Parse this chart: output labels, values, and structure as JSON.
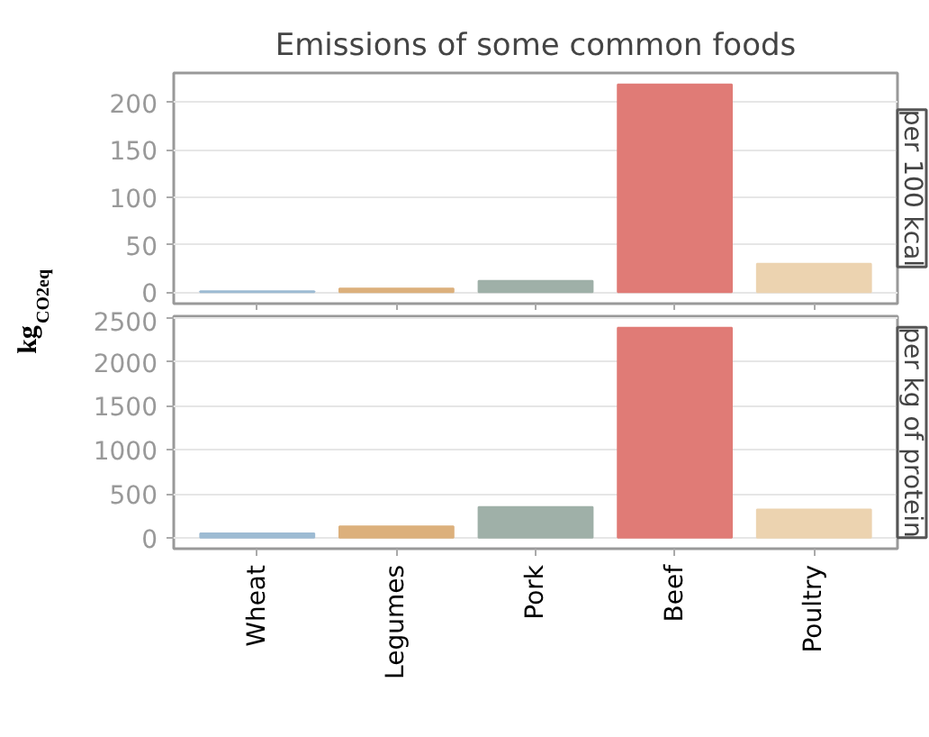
{
  "chart_data": [
    {
      "type": "bar",
      "title": "Emissions of some common foods",
      "ylabel": "kg$_{CO2eq}$",
      "categories": [
        null,
        null,
        null,
        null,
        null
      ],
      "values": [
        1,
        4,
        12,
        219,
        30
      ],
      "colors": [
        "#9dbbd3",
        "#dcb07c",
        "#9fb0a8",
        "#e07b76",
        "#ecd3b0"
      ],
      "ylim": [
        -12,
        231
      ],
      "yticks": [
        0,
        50,
        100,
        150,
        200
      ],
      "grid": "y",
      "annotations": [
        "per 100 kcal"
      ]
    },
    {
      "type": "bar",
      "categories": [
        "Wheat",
        "Legumes",
        "Pork",
        "Beef",
        "Poultry"
      ],
      "values": [
        50,
        130,
        350,
        2390,
        320
      ],
      "colors": [
        "#9dbbd3",
        "#dcb07c",
        "#9fb0a8",
        "#e07b76",
        "#ecd3b0"
      ],
      "ylim": [
        -125,
        2520
      ],
      "yticks": [
        0,
        500,
        1000,
        1500,
        2000,
        2500
      ],
      "grid": "y",
      "annotations": [
        "per kg of protein"
      ]
    }
  ]
}
